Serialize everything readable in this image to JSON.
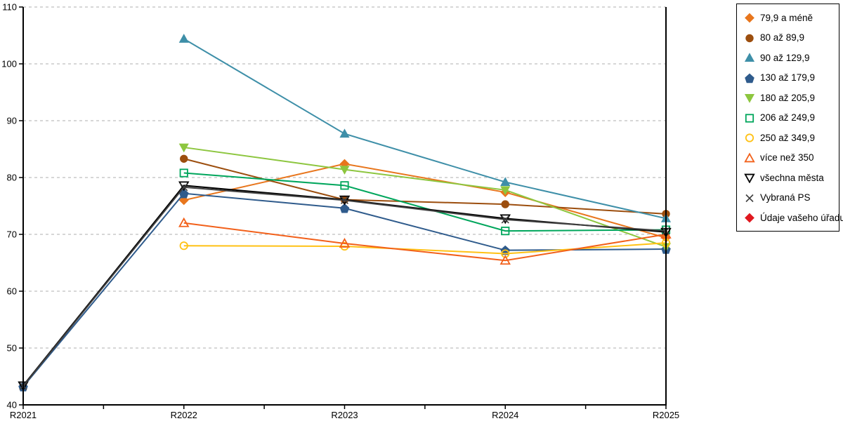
{
  "chart_data": {
    "type": "line",
    "title": "",
    "x": {
      "categories": [
        "R2021",
        "R2022",
        "R2023",
        "R2024",
        "R2025"
      ]
    },
    "y": {
      "min": 40,
      "max": 110,
      "step": 10,
      "ticks": [
        110,
        100,
        90,
        80,
        70,
        60,
        50,
        40
      ]
    },
    "grid": {
      "horizontal": true,
      "style": "dashed",
      "color": "#BFBFBF"
    },
    "legend_position": "right",
    "series": [
      {
        "name": "79,9 a méně",
        "color": "#E8761D",
        "marker": "diamond",
        "filled": true,
        "values": [
          null,
          76.0,
          82.4,
          77.4,
          69.4
        ]
      },
      {
        "name": "80 až 89,9",
        "color": "#9C4E0E",
        "marker": "circle",
        "filled": true,
        "values": [
          null,
          83.3,
          76.1,
          75.3,
          73.6
        ]
      },
      {
        "name": "90 až 129,9",
        "color": "#3E8FA8",
        "marker": "triangle-up",
        "filled": true,
        "values": [
          null,
          104.4,
          87.7,
          79.2,
          72.8
        ]
      },
      {
        "name": "130 až 179,9",
        "color": "#2F5B8C",
        "marker": "pentagon",
        "filled": true,
        "values": [
          43.2,
          77.2,
          74.6,
          67.2,
          67.4
        ]
      },
      {
        "name": "180 až 205,9",
        "color": "#8DC63F",
        "marker": "triangle-down",
        "filled": true,
        "values": [
          null,
          85.3,
          81.4,
          77.8,
          67.8
        ]
      },
      {
        "name": "206 až 249,9",
        "color": "#00A65C",
        "marker": "square",
        "filled": false,
        "values": [
          null,
          80.8,
          78.6,
          70.6,
          70.8
        ]
      },
      {
        "name": "250 až 349,9",
        "color": "#FFC114",
        "marker": "circle",
        "filled": false,
        "values": [
          null,
          68.0,
          67.9,
          66.6,
          68.5
        ]
      },
      {
        "name": "více než 350",
        "color": "#F2601A",
        "marker": "triangle-up",
        "filled": false,
        "values": [
          null,
          72.0,
          68.4,
          65.4,
          70.0
        ]
      },
      {
        "name": "všechna města",
        "color": "#000000",
        "marker": "triangle-down",
        "filled": false,
        "values": [
          43.4,
          78.6,
          76.1,
          72.8,
          70.4
        ]
      },
      {
        "name": "Vybraná PS",
        "color": "#3F3F3F",
        "marker": "x",
        "filled": false,
        "values": [
          43.3,
          78.3,
          76.0,
          72.6,
          70.6
        ]
      },
      {
        "name": "Údaje vašeho úřadu",
        "color": "#E0181F",
        "marker": "diamond",
        "filled": true,
        "values": [
          null,
          null,
          null,
          null,
          null
        ]
      }
    ]
  }
}
